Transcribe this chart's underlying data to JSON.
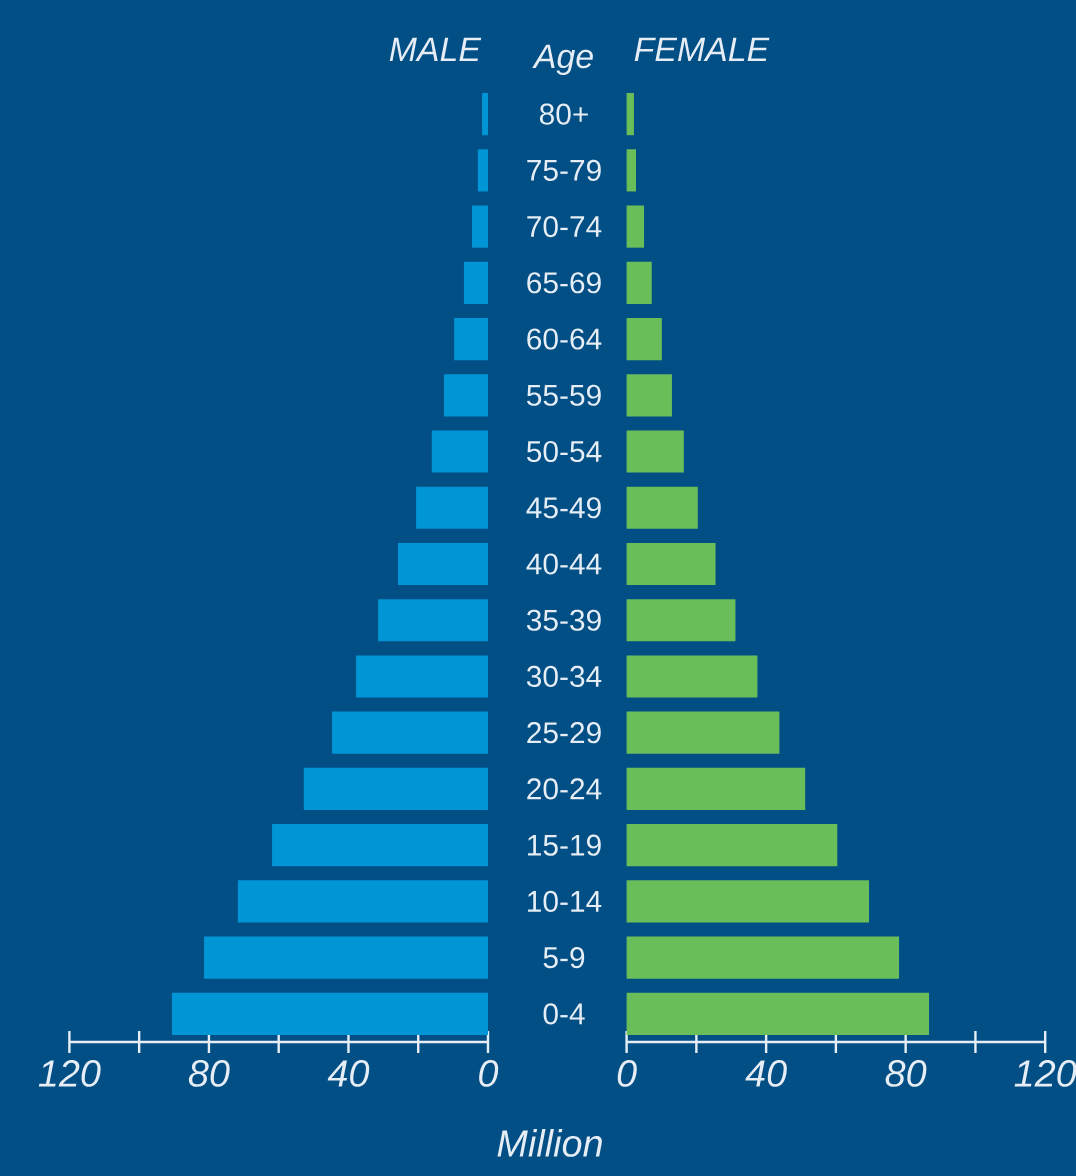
{
  "chart_data": [
    {
      "type": "bar",
      "orientation": "horizontal",
      "title": "MALE",
      "ylabel": "Age",
      "xlabel": "Million",
      "categories": [
        "80+",
        "75-79",
        "70-74",
        "65-69",
        "60-64",
        "55-59",
        "50-54",
        "45-49",
        "40-44",
        "35-39",
        "30-34",
        "25-29",
        "20-24",
        "15-19",
        "10-14",
        "5-9",
        "0-4"
      ],
      "values": [
        1.7,
        2.9,
        4.6,
        6.9,
        9.7,
        12.6,
        16.1,
        20.6,
        25.8,
        31.5,
        37.8,
        44.7,
        52.8,
        61.9,
        71.7,
        81.4,
        90.6
      ],
      "color": "#0095d5",
      "xlim": [
        120,
        0
      ],
      "xticks": [
        120,
        {
          "value": 100,
          "label": null
        },
        80,
        {
          "value": 60,
          "label": null
        },
        40,
        {
          "value": 20,
          "label": null
        },
        0
      ]
    },
    {
      "type": "bar",
      "orientation": "horizontal",
      "title": "FEMALE",
      "categories": [
        null,
        null,
        null,
        null,
        null,
        null,
        null,
        null,
        null,
        null,
        null,
        null,
        null,
        null,
        null,
        null,
        null
      ],
      "values": [
        2.1,
        2.7,
        5.0,
        7.2,
        10.1,
        13.0,
        16.4,
        20.4,
        25.5,
        31.2,
        37.5,
        43.8,
        51.2,
        60.4,
        69.5,
        78.1,
        86.7
      ],
      "color": "#6abe5a",
      "xlim": [
        0,
        120
      ],
      "xticks": [
        0,
        {
          "value": 20,
          "label": null
        },
        40,
        {
          "value": 60,
          "label": null
        },
        80,
        {
          "value": 100,
          "label": null
        },
        120
      ]
    }
  ]
}
